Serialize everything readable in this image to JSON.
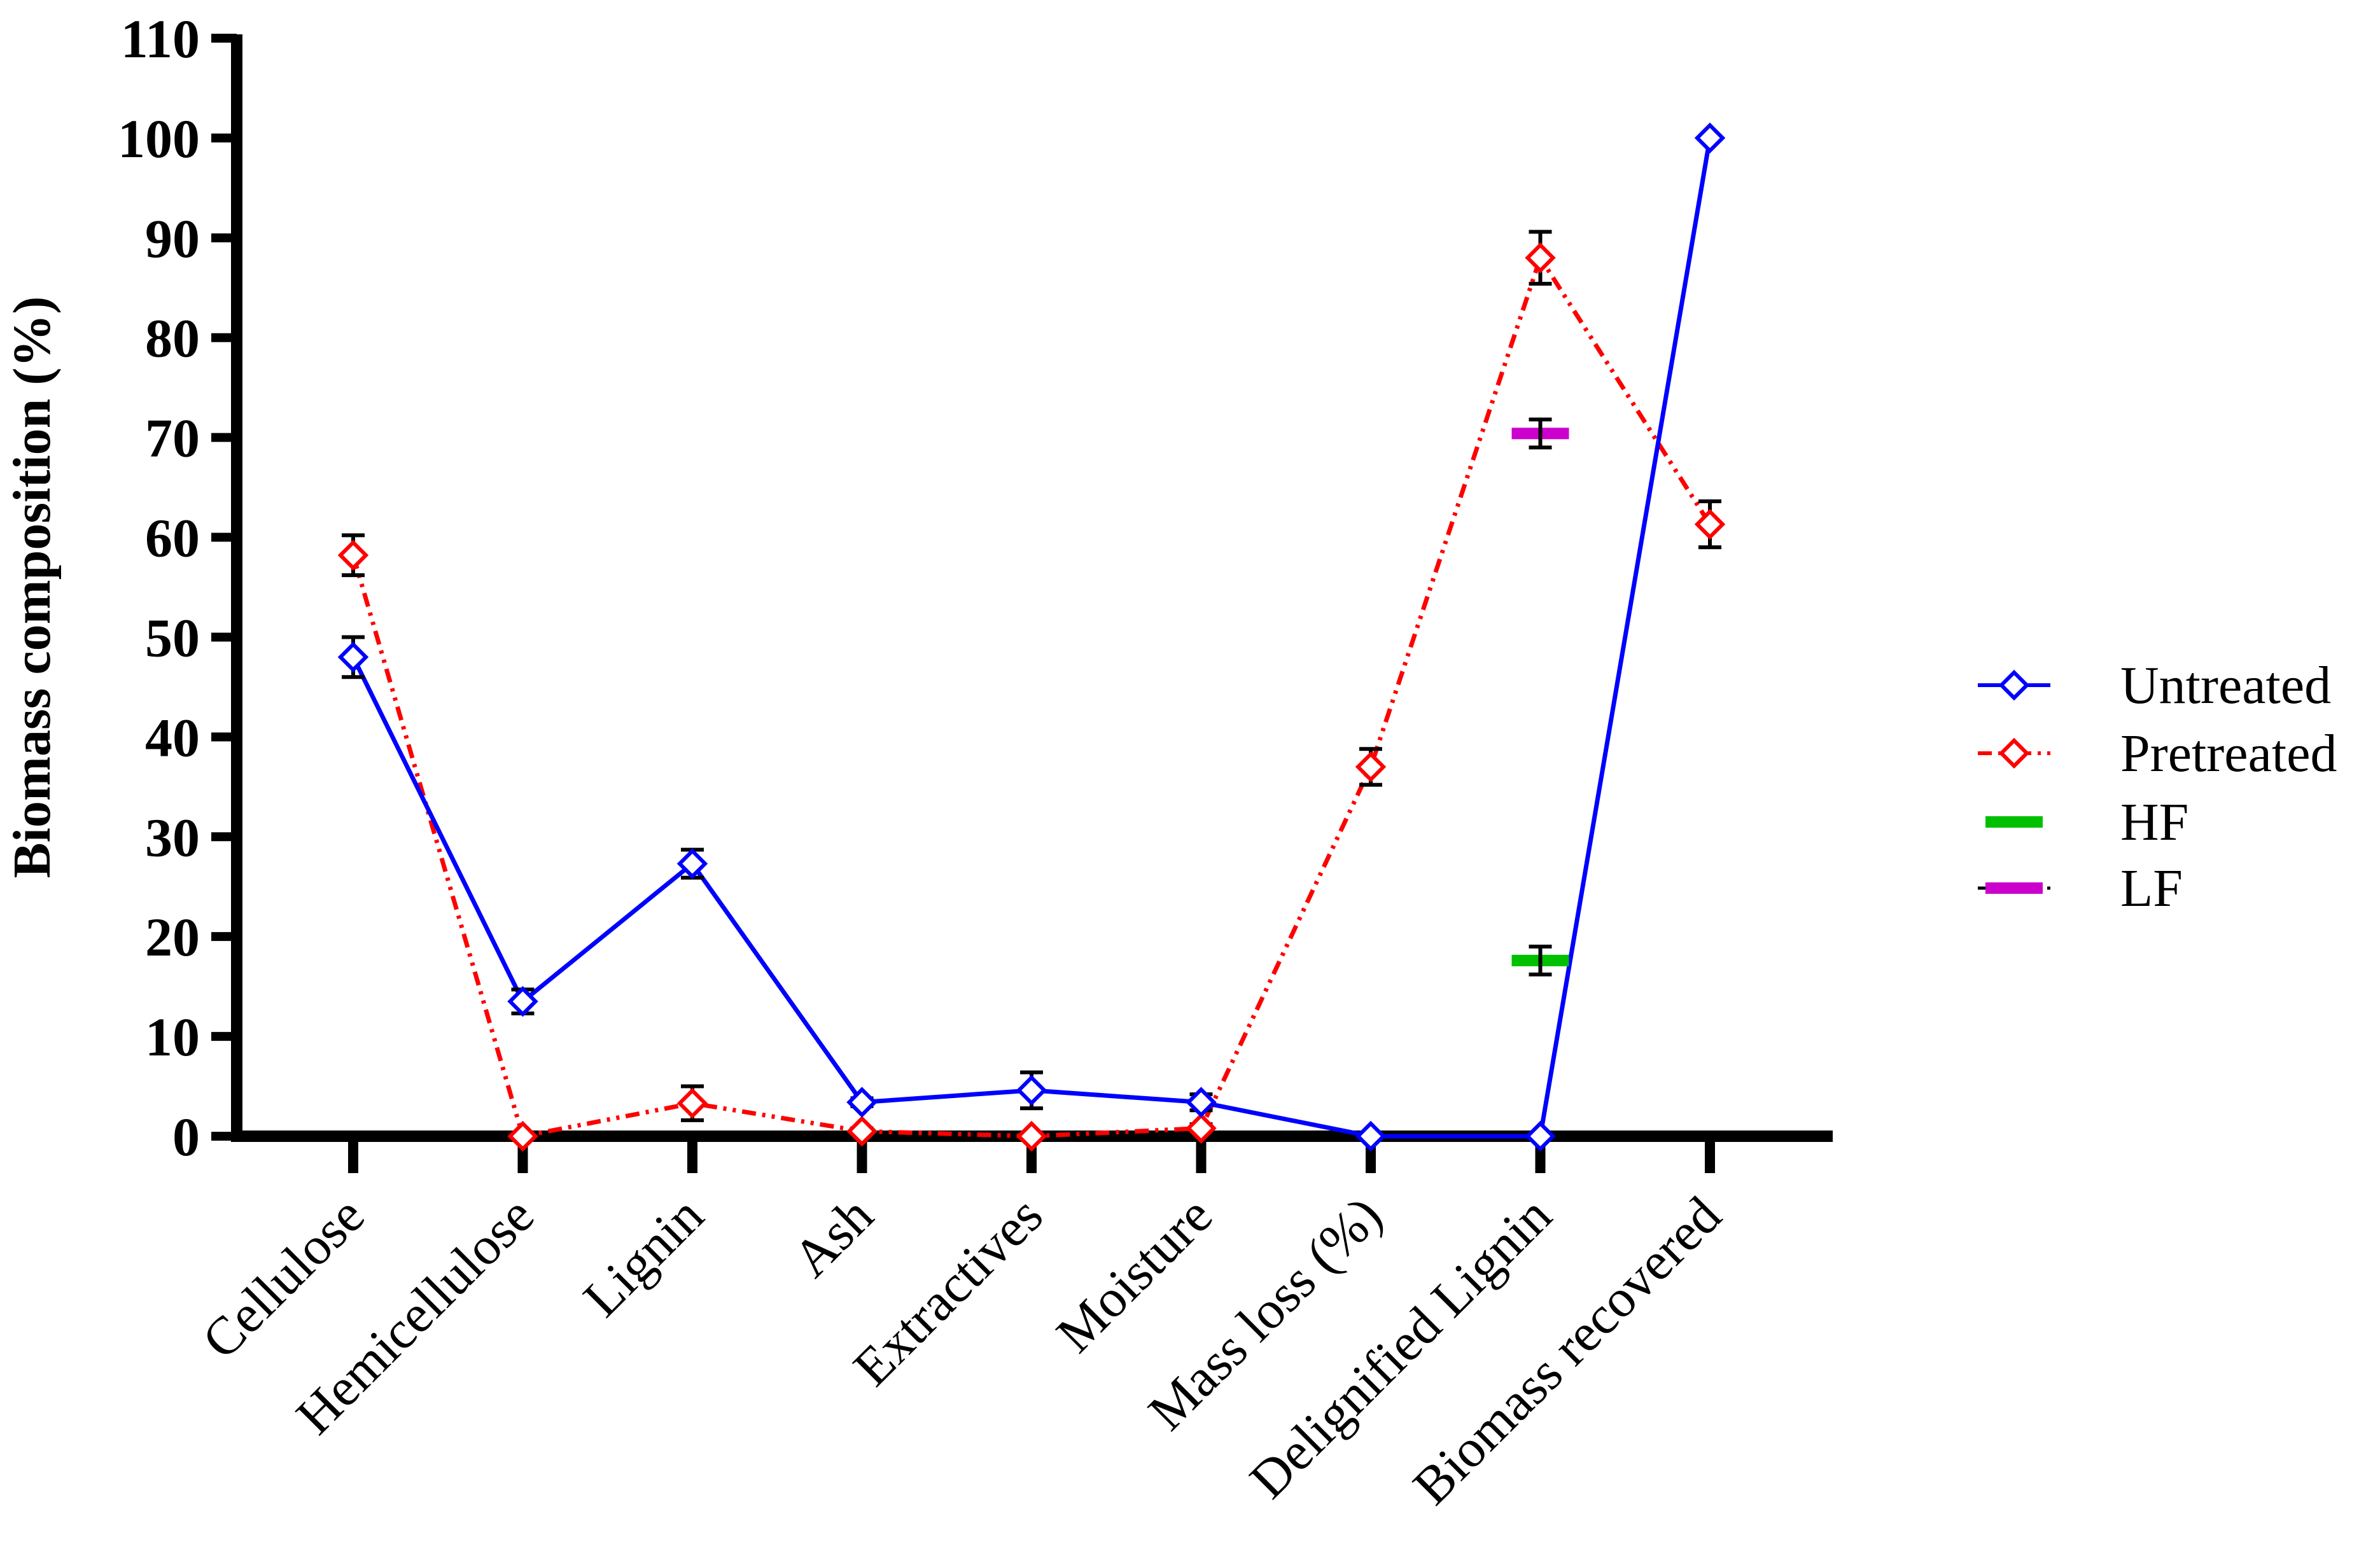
{
  "chart_data": {
    "type": "line",
    "title": "",
    "xlabel": "",
    "ylabel": "Biomass composition (%)",
    "ylim": [
      0,
      110
    ],
    "yticks": [
      0,
      10,
      20,
      30,
      40,
      50,
      60,
      70,
      80,
      90,
      100,
      110
    ],
    "grid": false,
    "legend_position": "right",
    "categories": [
      "Cellulose",
      "Hemicellulose",
      "Lignin",
      "Ash",
      "Extractives",
      "Moisture",
      "Mass loss (%)",
      "Delignified Lignin",
      "Biomass recovered"
    ],
    "series": [
      {
        "name": "Untreated",
        "color": "#0000ff",
        "line_style": "solid",
        "marker": "open-diamond",
        "values": [
          48.0,
          13.5,
          27.3,
          3.4,
          4.6,
          3.4,
          0,
          0,
          100
        ],
        "errors": [
          2.0,
          1.2,
          1.4,
          0.4,
          1.8,
          0.8,
          0,
          0,
          0
        ]
      },
      {
        "name": "Pretreated",
        "color": "#ff0000",
        "line_style": "dash-dot-dot",
        "marker": "open-diamond",
        "values": [
          58.2,
          0,
          3.3,
          0.5,
          0,
          0.8,
          37.0,
          88.0,
          61.3
        ],
        "errors": [
          2.0,
          0,
          1.7,
          0.3,
          0,
          0.4,
          1.8,
          2.6,
          2.3
        ]
      }
    ],
    "points": [
      {
        "name": "HF",
        "color": "#00c000",
        "marker": "bar",
        "category": "Delignified Lignin",
        "value": 17.6,
        "error": 1.4
      },
      {
        "name": "LF",
        "color": "#cc00cc",
        "marker": "bar",
        "category": "Delignified Lignin",
        "value": 70.4,
        "error": 1.4
      }
    ],
    "legend": [
      "Untreated",
      "Pretreated",
      "HF",
      "LF"
    ]
  }
}
